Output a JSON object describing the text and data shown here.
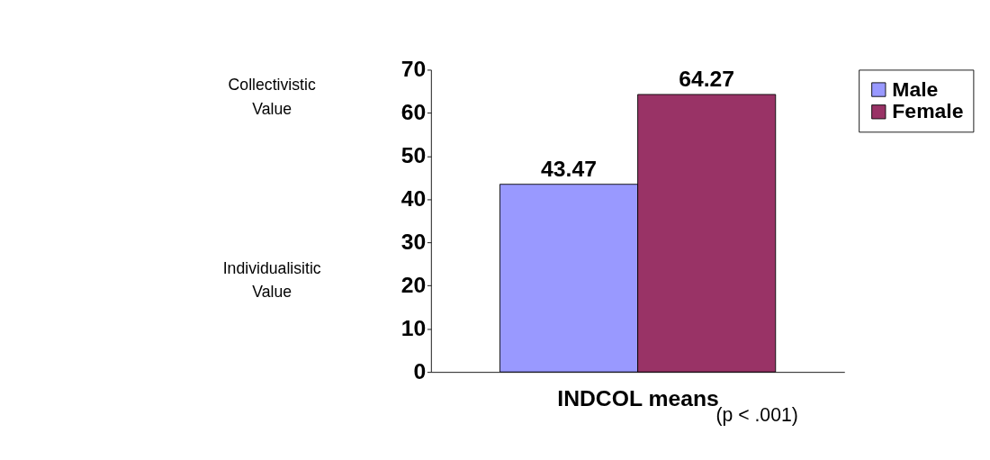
{
  "chart_data": {
    "type": "bar",
    "categories": [
      null
    ],
    "series": [
      {
        "name": "Male",
        "color": "#9999ff",
        "values": [
          43.47
        ]
      },
      {
        "name": "Female",
        "color": "#993366",
        "values": [
          64.27
        ]
      }
    ],
    "xlabel": "INDCOL means",
    "annotations": [
      "Collectivistic Value",
      "Individualisitic Value",
      "(p < .001)"
    ],
    "ylim": [
      0,
      70
    ],
    "yticks": [
      0,
      10,
      20,
      30,
      40,
      50,
      60,
      70
    ],
    "data_labels": true,
    "grid": false,
    "legend": "right"
  }
}
